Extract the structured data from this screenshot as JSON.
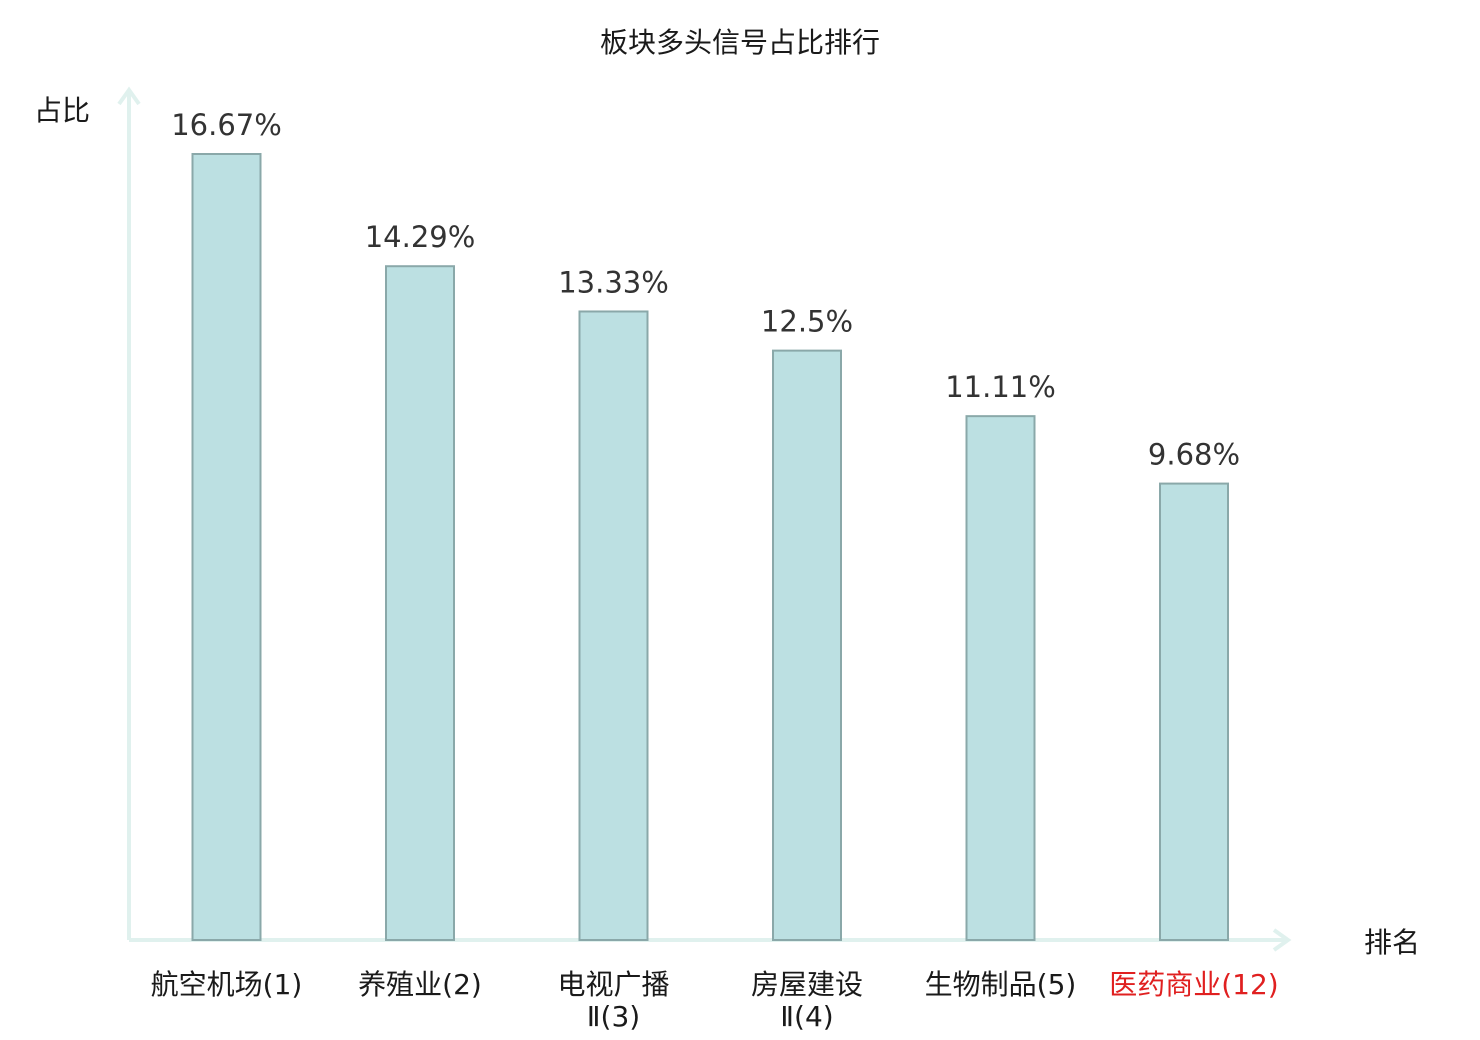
{
  "chart_data": {
    "type": "bar",
    "title": "板块多头信号占比排行",
    "xlabel": "排名",
    "ylabel": "占比",
    "categories": [
      {
        "lines": [
          "航空机场(1)"
        ],
        "highlight": false
      },
      {
        "lines": [
          "养殖业(2)"
        ],
        "highlight": false
      },
      {
        "lines": [
          "电视广播",
          "Ⅱ(3)"
        ],
        "highlight": false
      },
      {
        "lines": [
          "房屋建设",
          "Ⅱ(4)"
        ],
        "highlight": false
      },
      {
        "lines": [
          "生物制品(5)"
        ],
        "highlight": false
      },
      {
        "lines": [
          "医药商业(12)"
        ],
        "highlight": true
      }
    ],
    "values": [
      16.67,
      14.29,
      13.33,
      12.5,
      11.11,
      9.68
    ],
    "value_labels": [
      "16.67%",
      "14.29%",
      "13.33%",
      "12.5%",
      "11.11%",
      "9.68%"
    ],
    "ylim": [
      0,
      16.67
    ],
    "grid": false,
    "colors": {
      "bar_fill": "#bce0e2",
      "bar_stroke": "#8aa8a9",
      "axis": "#e0f1ee",
      "highlight_text": "#e02020"
    }
  }
}
